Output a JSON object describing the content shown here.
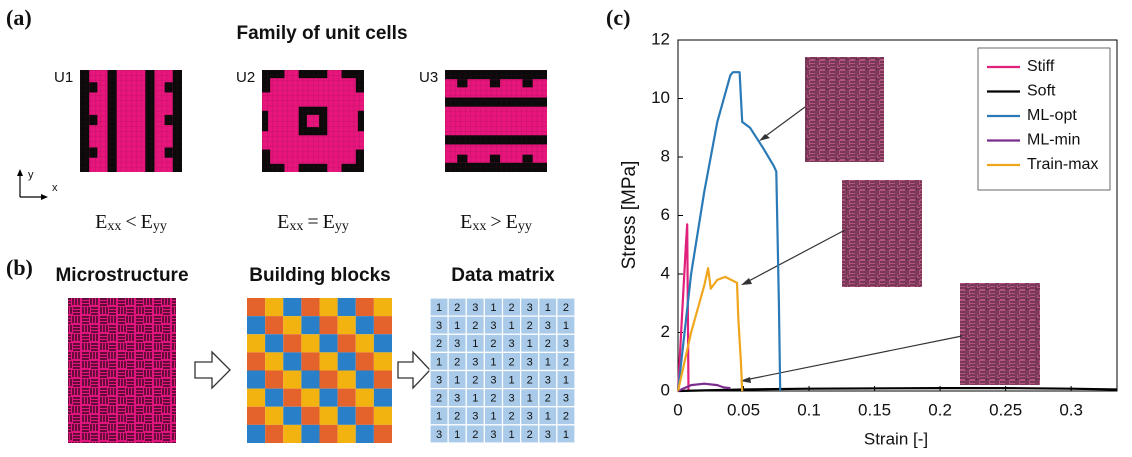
{
  "panel_a": {
    "label": "(a)",
    "title": "Family of unit cells",
    "axis_labels": {
      "x": "x",
      "y": "y"
    },
    "cells": [
      {
        "name": "U1",
        "left": {
          "symbol": "E",
          "subscript": "xx"
        },
        "operator": "<",
        "right": {
          "symbol": "E",
          "subscript": "yy"
        }
      },
      {
        "name": "U2",
        "left": {
          "symbol": "E",
          "subscript": "xx"
        },
        "operator": "=",
        "right": {
          "symbol": "E",
          "subscript": "yy"
        }
      },
      {
        "name": "U3",
        "left": {
          "symbol": "E",
          "subscript": "xx"
        },
        "operator": ">",
        "right": {
          "symbol": "E",
          "subscript": "yy"
        }
      }
    ]
  },
  "panel_b": {
    "label": "(b)",
    "steps": [
      "Microstructure",
      "Building blocks",
      "Data matrix"
    ],
    "block_colors": [
      "#e4632d",
      "#f2b311",
      "#2a7fc9"
    ],
    "matrix": [
      [
        1,
        2,
        3,
        1,
        2,
        3,
        1,
        2
      ],
      [
        3,
        1,
        2,
        3,
        1,
        2,
        3,
        1
      ],
      [
        2,
        3,
        1,
        2,
        3,
        1,
        2,
        3
      ],
      [
        1,
        2,
        3,
        1,
        2,
        3,
        1,
        2
      ],
      [
        3,
        1,
        2,
        3,
        1,
        2,
        3,
        1
      ],
      [
        2,
        3,
        1,
        2,
        3,
        1,
        2,
        3
      ],
      [
        1,
        2,
        3,
        1,
        2,
        3,
        1,
        2
      ],
      [
        3,
        1,
        2,
        3,
        1,
        2,
        3,
        1
      ]
    ]
  },
  "chart_data": {
    "type": "line",
    "label": "(c)",
    "x_label": "Strain [-]",
    "y_label": "Stress [MPa]",
    "xlim": [
      0,
      0.335
    ],
    "ylim": [
      0,
      12
    ],
    "xticks": [
      0,
      0.05,
      0.1,
      0.15,
      0.2,
      0.25,
      0.3
    ],
    "yticks": [
      0,
      2,
      4,
      6,
      8,
      10,
      12
    ],
    "legend": "upper right",
    "series": [
      {
        "name": "Stiff",
        "color": "#e0207a",
        "x": [
          0,
          0.003,
          0.006,
          0.007,
          0.0075,
          0.008
        ],
        "values": [
          0,
          2.5,
          5.0,
          5.7,
          3.0,
          0
        ]
      },
      {
        "name": "Soft",
        "color": "#000000",
        "x": [
          0,
          0.05,
          0.1,
          0.2,
          0.25,
          0.3,
          0.335
        ],
        "values": [
          0,
          0.05,
          0.08,
          0.1,
          0.1,
          0.08,
          0.05
        ]
      },
      {
        "name": "ML-opt",
        "color": "#2a7ab8",
        "x": [
          0,
          0.01,
          0.02,
          0.03,
          0.04,
          0.042,
          0.047,
          0.049,
          0.055,
          0.065,
          0.073,
          0.075,
          0.077,
          0.078
        ],
        "values": [
          0,
          4.0,
          6.8,
          9.2,
          10.8,
          10.9,
          10.9,
          9.2,
          9.0,
          8.3,
          7.7,
          7.5,
          3.0,
          0
        ]
      },
      {
        "name": "ML-min",
        "color": "#7b2d8e",
        "x": [
          0,
          0.01,
          0.02,
          0.03,
          0.035,
          0.04
        ],
        "values": [
          0,
          0.2,
          0.25,
          0.2,
          0.12,
          0.1
        ]
      },
      {
        "name": "Train-max",
        "color": "#f0a61c",
        "x": [
          0,
          0.01,
          0.02,
          0.023,
          0.025,
          0.03,
          0.036,
          0.045,
          0.046,
          0.048,
          0.049
        ],
        "values": [
          0,
          2.0,
          3.6,
          4.2,
          3.5,
          3.8,
          3.9,
          3.7,
          2.5,
          1.0,
          0
        ]
      }
    ]
  }
}
